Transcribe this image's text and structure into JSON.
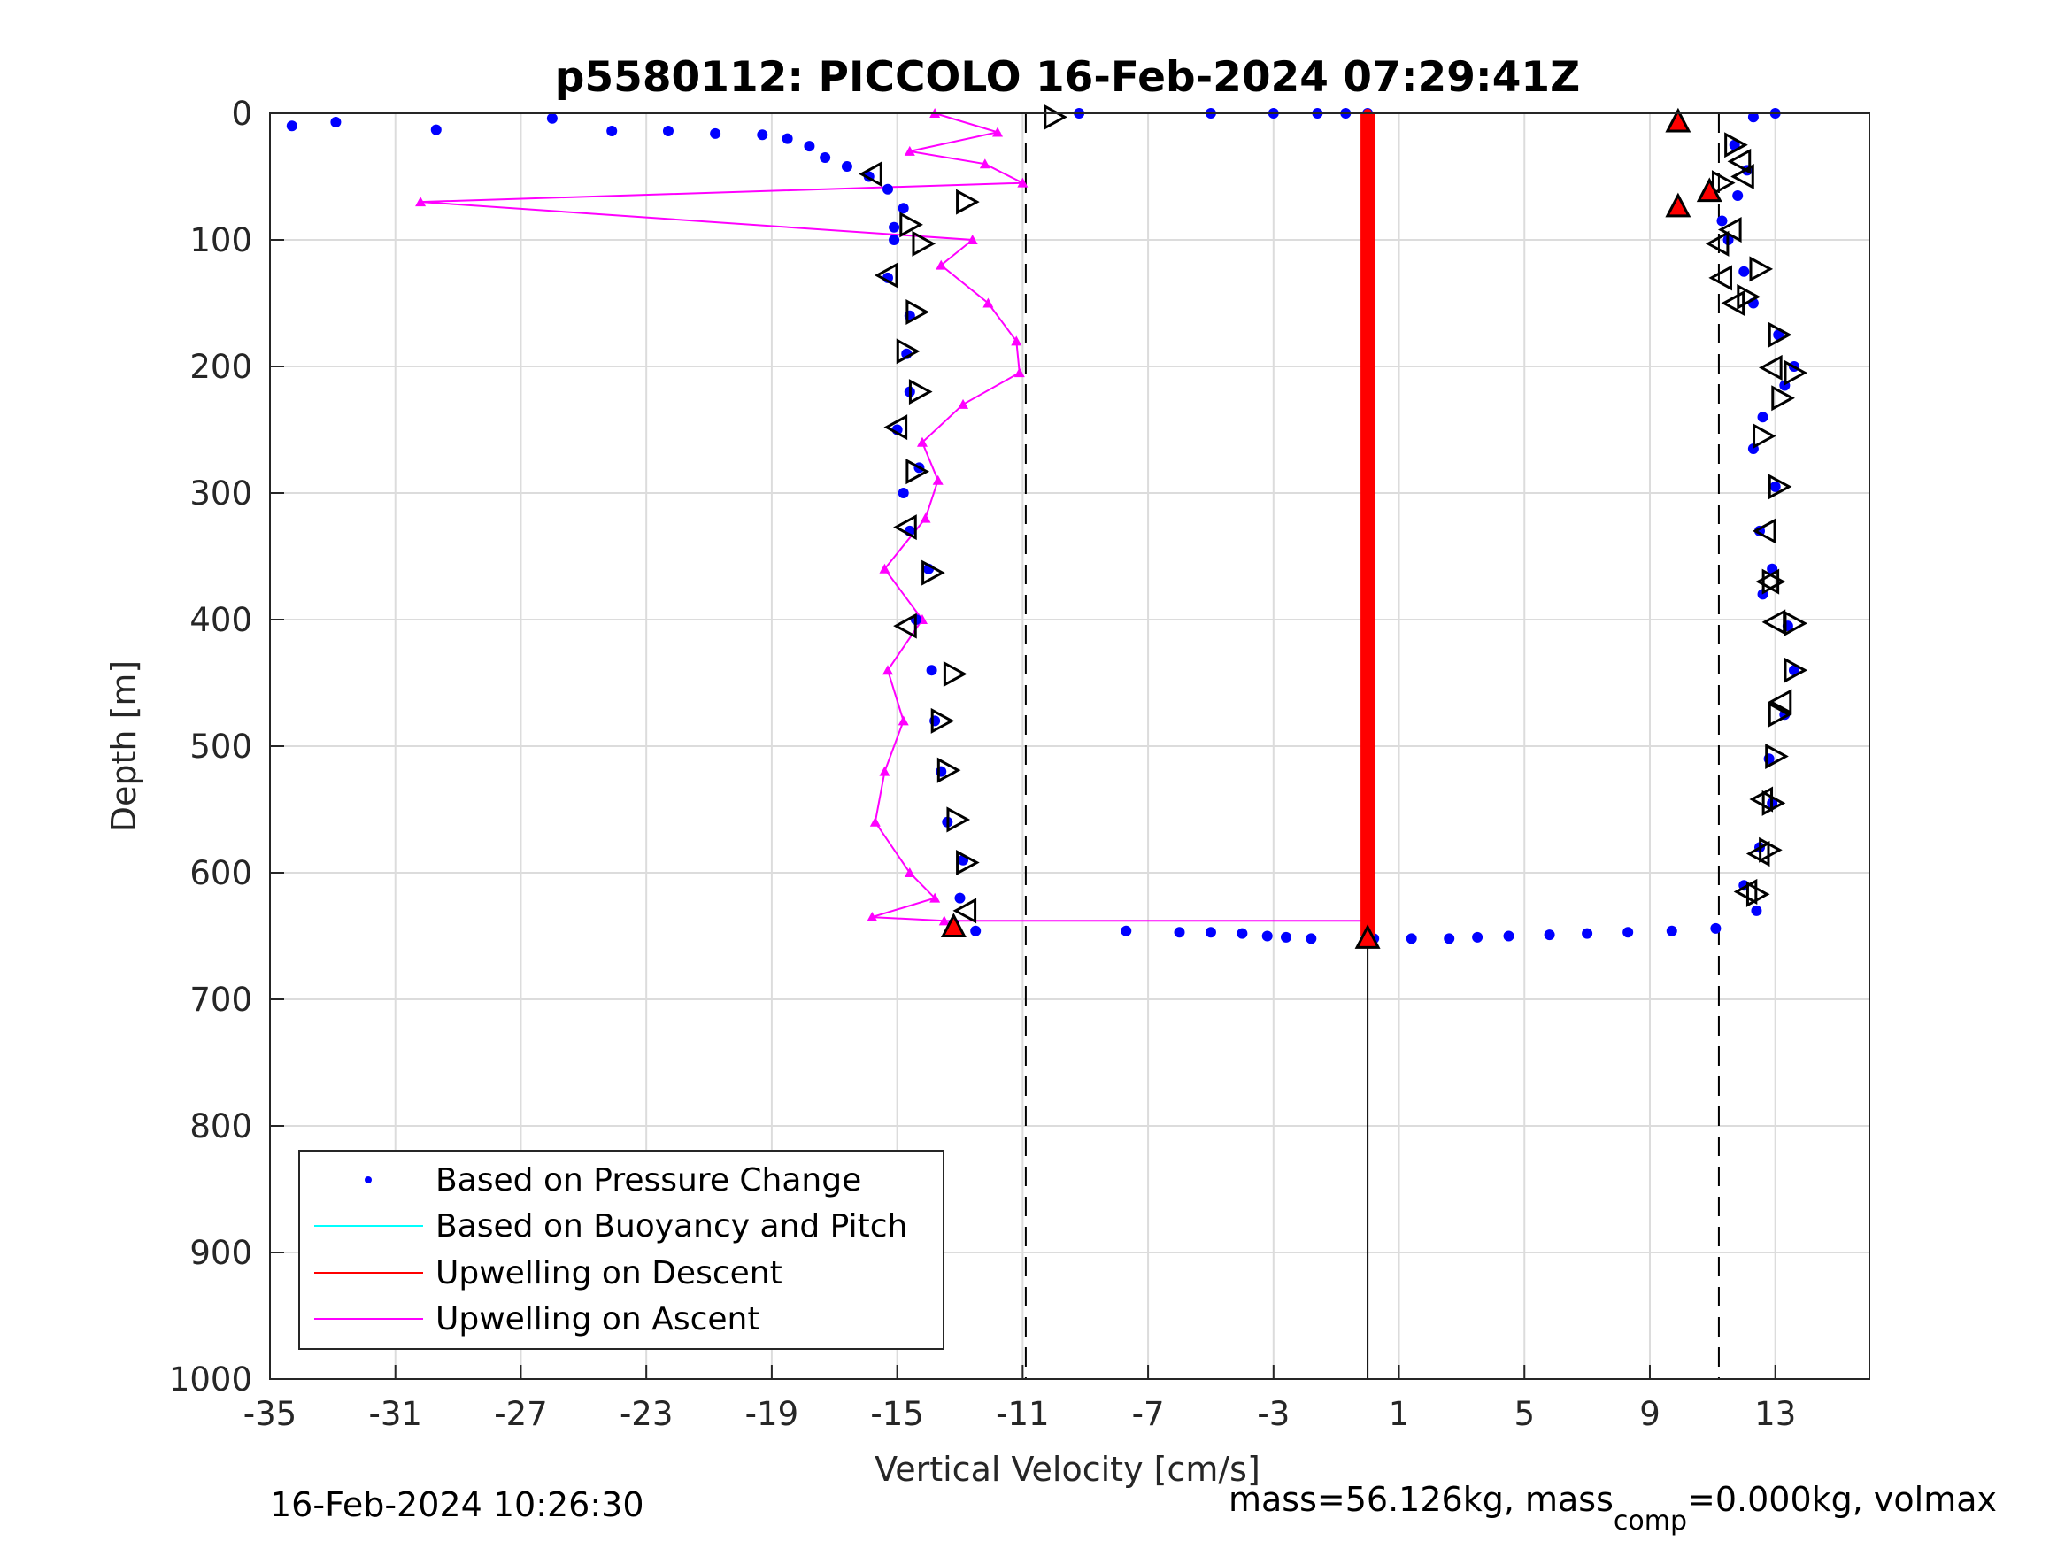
{
  "chart_data": {
    "type": "scatter",
    "title": "p5580112: PICCOLO 16-Feb-2024 07:29:41Z",
    "xlabel": "Vertical Velocity [cm/s]",
    "ylabel": "Depth [m]",
    "xlim": [
      -35,
      16
    ],
    "ylim": [
      0,
      1000
    ],
    "y_reversed": true,
    "grid": true,
    "x_ticks": [
      -35,
      -31,
      -27,
      -23,
      -19,
      -15,
      -11,
      -7,
      -3,
      1,
      5,
      9,
      13
    ],
    "x_tick_labels": [
      "-35",
      "-31",
      "-27",
      "-23",
      "-19",
      "-15",
      "-11",
      "-7",
      "-3",
      "1",
      "5",
      "9",
      "13"
    ],
    "y_ticks": [
      0,
      100,
      200,
      300,
      400,
      500,
      600,
      700,
      800,
      900,
      1000
    ],
    "y_tick_labels": [
      "0",
      "100",
      "200",
      "300",
      "400",
      "500",
      "600",
      "700",
      "800",
      "900",
      "1000"
    ],
    "legend": {
      "placement": "bottom-left",
      "entries": [
        {
          "label": "Based on Pressure Change",
          "color": "#0000ff",
          "marker": "dot"
        },
        {
          "label": "Based on Buoyancy and Pitch",
          "color": "#00ffff",
          "marker": "line"
        },
        {
          "label": "Upwelling on Descent",
          "color": "#ff0000",
          "marker": "line"
        },
        {
          "label": "Upwelling on Ascent",
          "color": "#ff00ff",
          "marker": "line"
        }
      ]
    },
    "reference_lines": {
      "dashed_x": [
        -10.9,
        11.2
      ],
      "solid_x": 0,
      "solid_depth_range": [
        650,
        1000
      ]
    },
    "series": [
      {
        "name": "Based on Pressure Change",
        "color": "#0000ff",
        "segments": [
          {
            "part": "ascent surface tail",
            "points": [
              [
                -34.3,
                10
              ],
              [
                -32.9,
                7
              ],
              [
                -29.7,
                13
              ],
              [
                -26,
                4
              ],
              [
                -24.1,
                14
              ],
              [
                -22.3,
                14
              ],
              [
                -20.8,
                16
              ],
              [
                -19.3,
                17
              ],
              [
                -18.5,
                20
              ],
              [
                -17.8,
                26
              ],
              [
                -17.3,
                35
              ],
              [
                -16.6,
                42
              ],
              [
                -15.9,
                50
              ],
              [
                -15.3,
                60
              ],
              [
                -14.8,
                75
              ],
              [
                -15.1,
                90
              ]
            ]
          },
          {
            "part": "ascent",
            "points": [
              [
                -15.1,
                100
              ],
              [
                -15.3,
                130
              ],
              [
                -14.6,
                160
              ],
              [
                -14.7,
                190
              ],
              [
                -14.6,
                220
              ],
              [
                -15.0,
                250
              ],
              [
                -14.3,
                280
              ],
              [
                -14.8,
                300
              ],
              [
                -14.6,
                330
              ],
              [
                -14.0,
                360
              ],
              [
                -14.4,
                400
              ],
              [
                -13.9,
                440
              ],
              [
                -13.8,
                480
              ],
              [
                -13.6,
                520
              ],
              [
                -13.4,
                560
              ],
              [
                -12.9,
                590
              ],
              [
                -13.0,
                620
              ],
              [
                -13.2,
                640
              ]
            ]
          },
          {
            "part": "bottom turn",
            "points": [
              [
                -12.5,
                646
              ],
              [
                -7.7,
                646
              ],
              [
                -6.0,
                647
              ],
              [
                -5.0,
                647
              ],
              [
                -4.0,
                648
              ],
              [
                -3.2,
                650
              ],
              [
                -2.6,
                651
              ],
              [
                -1.8,
                652
              ],
              [
                0.2,
                652
              ],
              [
                1.4,
                652
              ],
              [
                2.6,
                652
              ],
              [
                3.5,
                651
              ],
              [
                4.5,
                650
              ],
              [
                5.8,
                649
              ],
              [
                7.0,
                648
              ],
              [
                8.3,
                647
              ],
              [
                9.7,
                646
              ],
              [
                11.1,
                644
              ]
            ]
          },
          {
            "part": "descent",
            "points": [
              [
                12.4,
                630
              ],
              [
                12.0,
                610
              ],
              [
                12.5,
                580
              ],
              [
                12.9,
                545
              ],
              [
                12.8,
                510
              ],
              [
                13.3,
                475
              ],
              [
                13.6,
                440
              ],
              [
                13.4,
                405
              ],
              [
                12.6,
                380
              ],
              [
                12.9,
                360
              ],
              [
                12.5,
                330
              ],
              [
                13.0,
                295
              ],
              [
                12.3,
                265
              ],
              [
                12.6,
                240
              ],
              [
                13.3,
                215
              ],
              [
                13.6,
                200
              ],
              [
                13.1,
                175
              ],
              [
                12.3,
                150
              ],
              [
                12.0,
                125
              ],
              [
                11.5,
                100
              ],
              [
                11.3,
                85
              ],
              [
                11.8,
                65
              ],
              [
                12.1,
                45
              ],
              [
                11.7,
                25
              ],
              [
                12.3,
                3
              ],
              [
                13.0,
                0
              ]
            ]
          },
          {
            "part": "descent surface",
            "points": [
              [
                -9.2,
                0
              ],
              [
                -5.0,
                0
              ],
              [
                -3.0,
                0
              ],
              [
                -1.6,
                0
              ],
              [
                -0.7,
                0
              ],
              [
                0,
                0
              ]
            ]
          }
        ]
      },
      {
        "name": "Upwelling on Descent",
        "color": "#ff0000",
        "points": [
          [
            0,
            0
          ],
          [
            0,
            100
          ],
          [
            0,
            200
          ],
          [
            0,
            300
          ],
          [
            0,
            400
          ],
          [
            0,
            500
          ],
          [
            0,
            600
          ],
          [
            0,
            650
          ]
        ]
      },
      {
        "name": "Upwelling on Ascent",
        "color": "#ff00ff",
        "points": [
          [
            -13.8,
            0
          ],
          [
            -11.8,
            15
          ],
          [
            -14.6,
            30
          ],
          [
            -12.2,
            40
          ],
          [
            -11.0,
            55
          ],
          [
            -30.2,
            70
          ],
          [
            -12.6,
            100
          ],
          [
            -13.6,
            120
          ],
          [
            -12.1,
            150
          ],
          [
            -11.2,
            180
          ],
          [
            -11.1,
            205
          ],
          [
            -12.9,
            230
          ],
          [
            -14.2,
            260
          ],
          [
            -13.7,
            290
          ],
          [
            -14.1,
            320
          ],
          [
            -15.4,
            360
          ],
          [
            -14.2,
            400
          ],
          [
            -15.3,
            440
          ],
          [
            -14.8,
            480
          ],
          [
            -15.4,
            520
          ],
          [
            -15.7,
            560
          ],
          [
            -14.6,
            600
          ],
          [
            -13.8,
            620
          ],
          [
            -15.8,
            635
          ],
          [
            -13.5,
            638
          ],
          [
            0,
            638
          ]
        ]
      },
      {
        "name": "",
        "color": "#000000",
        "marker": "triangle-right",
        "points": [
          [
            -10.0,
            3
          ],
          [
            -12.8,
            70
          ],
          [
            -14.6,
            88
          ],
          [
            -14.2,
            103
          ],
          [
            -14.4,
            157
          ],
          [
            -14.7,
            188
          ],
          [
            -14.3,
            220
          ],
          [
            -14.4,
            283
          ],
          [
            -13.9,
            363
          ],
          [
            -13.2,
            443
          ],
          [
            -13.6,
            480
          ],
          [
            -13.4,
            519
          ],
          [
            -13.1,
            558
          ],
          [
            -12.8,
            592
          ],
          [
            11.7,
            25
          ],
          [
            11.3,
            55
          ],
          [
            12.5,
            123
          ],
          [
            12.1,
            145
          ],
          [
            13.1,
            175
          ],
          [
            13.6,
            205
          ],
          [
            13.2,
            225
          ],
          [
            12.6,
            255
          ],
          [
            13.1,
            295
          ],
          [
            12.9,
            370
          ],
          [
            13.6,
            403
          ],
          [
            13.6,
            440
          ],
          [
            13.1,
            475
          ],
          [
            13.0,
            508
          ],
          [
            12.9,
            545
          ],
          [
            12.8,
            582
          ],
          [
            12.4,
            617
          ]
        ]
      },
      {
        "name": "",
        "color": "#000000",
        "marker": "triangle-left",
        "points": [
          [
            -15.8,
            48
          ],
          [
            -15.3,
            128
          ],
          [
            -15.0,
            248
          ],
          [
            -14.7,
            327
          ],
          [
            -14.7,
            405
          ],
          [
            -12.8,
            630
          ],
          [
            11.9,
            38
          ],
          [
            12.0,
            50
          ],
          [
            11.6,
            92
          ],
          [
            11.2,
            103
          ],
          [
            11.3,
            130
          ],
          [
            11.7,
            150
          ],
          [
            12.9,
            201
          ],
          [
            12.7,
            330
          ],
          [
            12.8,
            370
          ],
          [
            13.0,
            402
          ],
          [
            13.2,
            465
          ],
          [
            12.6,
            542
          ],
          [
            12.5,
            585
          ],
          [
            12.1,
            615
          ]
        ]
      },
      {
        "name": "",
        "color": "#ff0000",
        "marker": "triangle-up",
        "points": [
          [
            -13.2,
            643
          ],
          [
            0,
            652
          ],
          [
            9.9,
            7
          ],
          [
            10.9,
            62
          ],
          [
            9.9,
            74
          ]
        ]
      }
    ]
  },
  "footer": {
    "timestamp": "16-Feb-2024 10:26:30",
    "mass_text": "mass=56.126kg, mass",
    "mass_sub": "comp",
    "mass_rest": "=0.000kg, volmax"
  },
  "colors": {
    "pressure": "#0000ff",
    "buoyancy": "#00ffff",
    "upwelling_descent": "#ff0000",
    "upwelling_ascent": "#ff00ff"
  }
}
